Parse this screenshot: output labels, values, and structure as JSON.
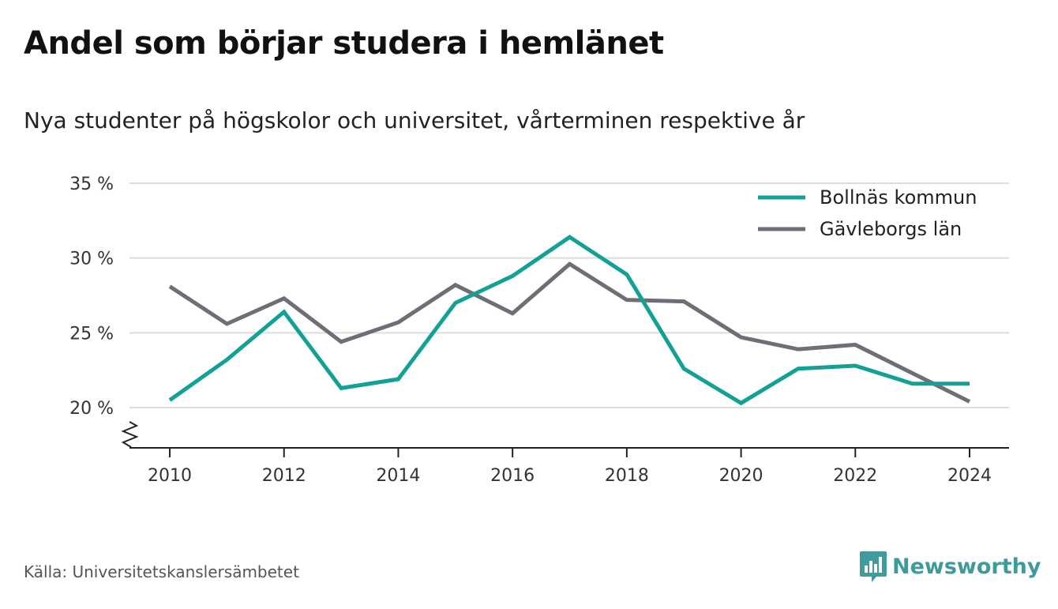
{
  "header": {
    "title": "Andel som börjar studera i hemlänet",
    "subtitle": "Nya studenter på högskolor och universitet, vårterminen respektive år"
  },
  "footer": {
    "source": "Källa: Universitetskanslersämbetet",
    "brand": "Newsworthy"
  },
  "colors": {
    "series_1": "#13a196",
    "series_2": "#6e6e76",
    "grid": "#dddddd",
    "brand": "#3e9a9b"
  },
  "chart_data": {
    "type": "line",
    "x": [
      2010,
      2011,
      2012,
      2013,
      2014,
      2015,
      2016,
      2017,
      2018,
      2019,
      2020,
      2021,
      2022,
      2023,
      2024
    ],
    "x_ticks": [
      "2010",
      "2012",
      "2014",
      "2016",
      "2018",
      "2020",
      "2022",
      "2024"
    ],
    "y_ticks": [
      "35 %",
      "30 %",
      "25 %",
      "20 %"
    ],
    "ylim": [
      17.3,
      35
    ],
    "axis_break": true,
    "grid": true,
    "legend_position": "top-right",
    "series": [
      {
        "name": "Bollnäs kommun",
        "color": "#13a196",
        "values": [
          20.5,
          23.2,
          26.4,
          21.3,
          21.9,
          27.0,
          28.8,
          31.4,
          28.9,
          22.6,
          20.3,
          22.6,
          22.8,
          21.6,
          21.6
        ]
      },
      {
        "name": "Gävleborgs län",
        "color": "#6e6e76",
        "values": [
          28.1,
          25.6,
          27.3,
          24.4,
          25.7,
          28.2,
          26.3,
          29.6,
          27.2,
          27.1,
          24.7,
          23.9,
          24.2,
          22.3,
          20.4
        ]
      }
    ]
  }
}
